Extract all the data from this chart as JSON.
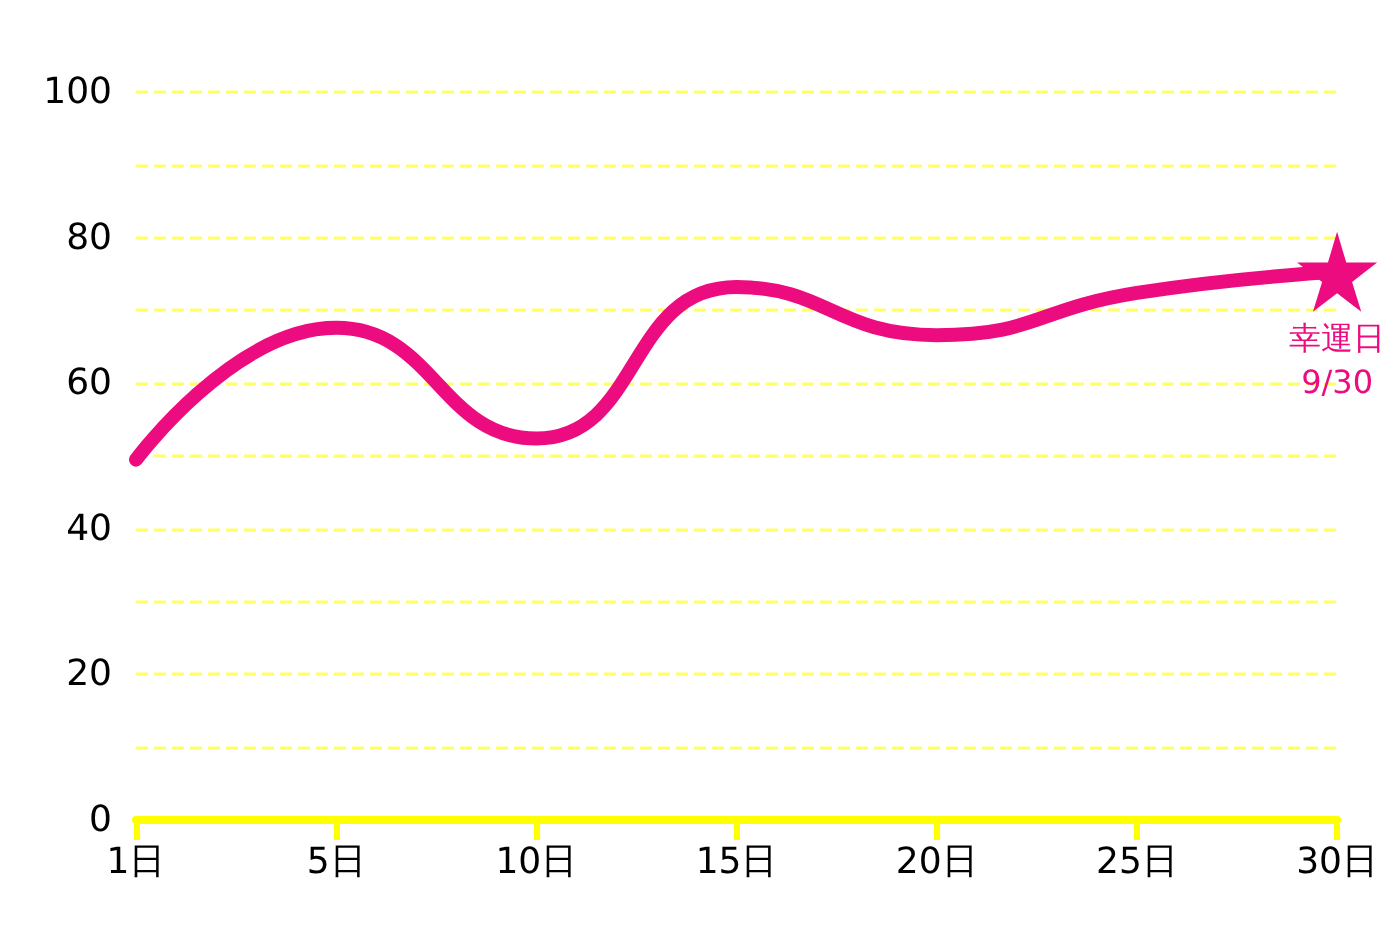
{
  "chart_data": {
    "type": "line",
    "categories": [
      "1日",
      "5日",
      "10日",
      "15日",
      "20日",
      "25日",
      "30日"
    ],
    "series": [
      {
        "color": "#ec0c7f",
        "values": [
          49.5,
          67.6,
          52.4,
          73.2,
          66.6,
          72.4,
          75.3
        ]
      }
    ],
    "ylim": [
      0,
      100
    ],
    "yticks": [
      0,
      {
        "value": 10,
        "label": null
      },
      20,
      {
        "value": 30,
        "label": null
      },
      40,
      {
        "value": 50,
        "label": null
      },
      60,
      {
        "value": 70,
        "label": null
      },
      80,
      {
        "value": 90,
        "label": null
      },
      100
    ],
    "grid": "y",
    "marker": "none",
    "line_style": "solid",
    "annotations": [
      {
        "text": "幸運日\n9/30",
        "x": "30日",
        "y": 75.3
      }
    ]
  }
}
